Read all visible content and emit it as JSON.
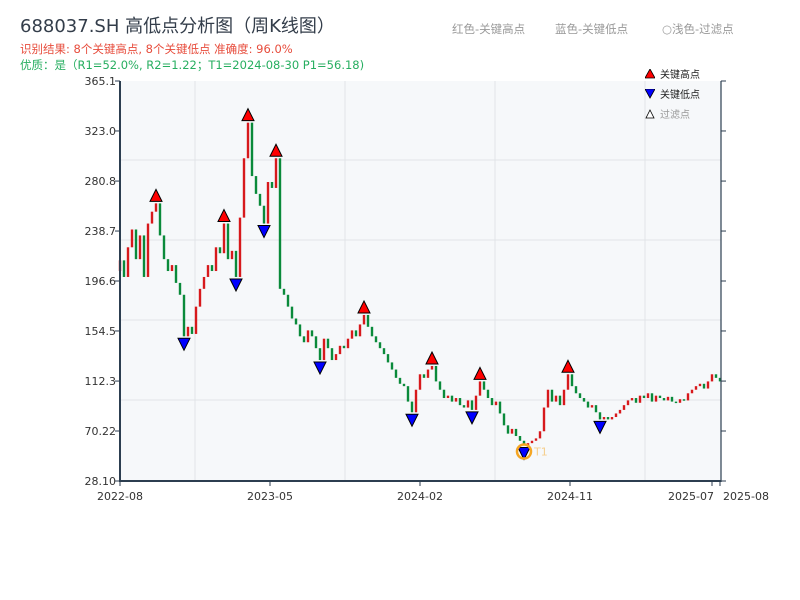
{
  "header": {
    "title": "688037.SH 高低点分析图（周K线图）",
    "result_line": "识别结果: 8个关键高点, 8个关键低点  准确度: 96.0%",
    "quality_line": "优质：是（R1=52.0%, R2=1.22；T1=2024-08-30 P1=56.18)"
  },
  "top_legend": {
    "red": "红色-关键高点",
    "blue": "蓝色-关键低点",
    "light": "○浅色-过滤点"
  },
  "colors": {
    "up": "#d7191c",
    "down": "#0a8a3a",
    "high_marker": "#ff0000",
    "low_marker": "#0000ff",
    "highlight": "#f5a623"
  },
  "chart_data": {
    "type": "candlestick",
    "ylim": [
      28.1,
      365.1
    ],
    "yticks": [
      "28.10",
      "70.22",
      "112.3",
      "154.5",
      "196.6",
      "238.7",
      "280.8",
      "323.0",
      "365.1"
    ],
    "ytick_values": [
      28.1,
      70.22,
      112.3,
      154.5,
      196.6,
      238.7,
      280.8,
      323.0,
      365.1
    ],
    "xticks": [
      {
        "label": "2022-08",
        "index": 0
      },
      {
        "label": "2023-05",
        "index": 37.5
      },
      {
        "label": "2024-02",
        "index": 75
      },
      {
        "label": "2024-11",
        "index": 112.5
      },
      {
        "label": "2025-07",
        "index": 148
      },
      {
        "label": "2025-08",
        "index": 150
      }
    ],
    "closes": [
      214,
      200,
      225,
      240,
      215,
      235,
      200,
      245,
      255,
      262,
      235,
      215,
      205,
      210,
      195,
      185,
      150,
      158,
      152,
      175,
      190,
      200,
      210,
      205,
      225,
      220,
      245,
      215,
      222,
      200,
      250,
      300,
      330,
      285,
      270,
      260,
      245,
      280,
      275,
      300,
      190,
      185,
      175,
      165,
      160,
      150,
      145,
      155,
      150,
      140,
      130,
      148,
      140,
      130,
      135,
      142,
      140,
      148,
      155,
      150,
      160,
      168,
      158,
      150,
      145,
      140,
      135,
      128,
      122,
      115,
      110,
      108,
      95,
      86,
      105,
      118,
      115,
      122,
      125,
      112,
      105,
      98,
      100,
      95,
      98,
      92,
      90,
      96,
      88,
      100,
      112,
      105,
      98,
      92,
      95,
      85,
      75,
      68,
      72,
      66,
      62,
      58,
      60,
      62,
      64,
      70,
      90,
      105,
      95,
      100,
      92,
      105,
      118,
      108,
      102,
      98,
      95,
      90,
      92,
      86,
      80,
      82,
      80,
      82,
      85,
      88,
      92,
      96,
      98,
      94,
      100,
      98,
      102,
      95,
      100,
      98,
      96,
      99,
      95,
      94,
      97,
      96,
      102,
      105,
      108,
      110,
      106,
      112,
      118,
      115,
      112
    ],
    "first_open": 205,
    "key_highs": [
      9,
      26,
      32,
      39,
      61,
      78,
      90,
      112
    ],
    "key_lows": [
      16,
      29,
      36,
      50,
      73,
      88,
      101,
      120
    ],
    "highlight": {
      "index": 101,
      "label": "T1"
    },
    "legend": [
      {
        "label": "关键高点",
        "marker": "triangle-up"
      },
      {
        "label": "关键低点",
        "marker": "triangle-down"
      },
      {
        "label": "过滤点",
        "marker": "triangle-up-hollow"
      }
    ]
  }
}
